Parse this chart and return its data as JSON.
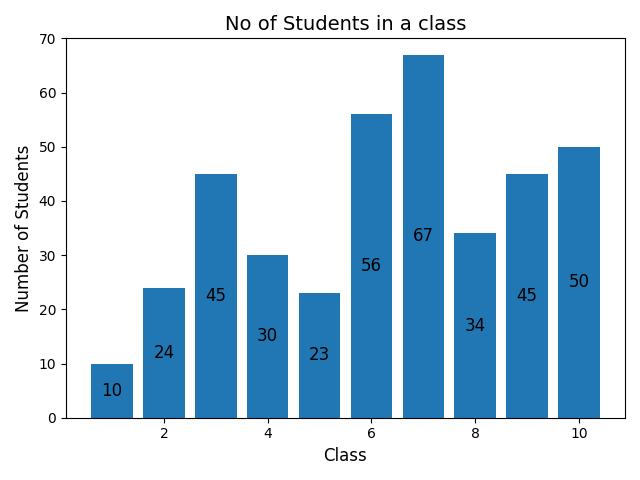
{
  "classes": [
    1,
    2,
    3,
    4,
    5,
    6,
    7,
    8,
    9,
    10
  ],
  "values": [
    10,
    24,
    45,
    30,
    23,
    56,
    67,
    34,
    45,
    50
  ],
  "bar_color": "#2077b4",
  "title": "No of Students in a class",
  "xlabel": "Class",
  "ylabel": "Number of Students",
  "ylim": [
    0,
    70
  ],
  "xlim": [
    0,
    11
  ],
  "title_fontsize": 14,
  "label_fontsize": 12,
  "annotation_fontsize": 12,
  "bar_width": 0.8,
  "figsize": [
    6.4,
    4.8
  ],
  "dpi": 100
}
